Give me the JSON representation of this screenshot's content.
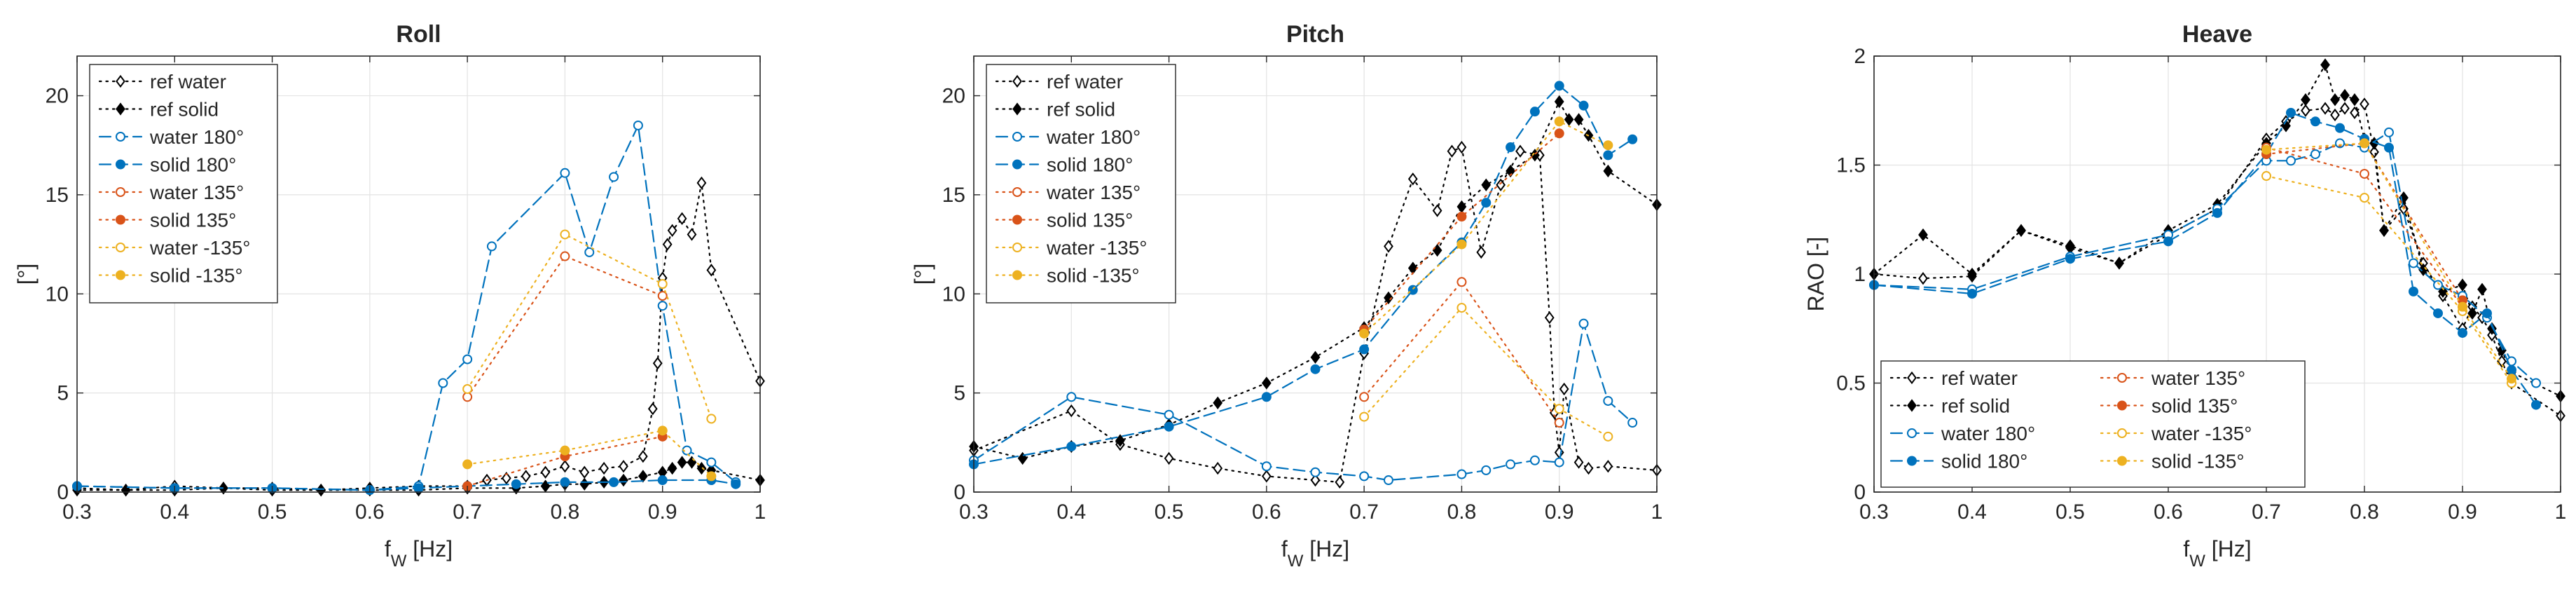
{
  "series_styles": {
    "ref_water": {
      "label": "ref water",
      "color": "#000000",
      "dash": "dot",
      "marker": "diamond",
      "filled": false
    },
    "ref_solid": {
      "label": "ref solid",
      "color": "#000000",
      "dash": "dot",
      "marker": "diamond",
      "filled": true
    },
    "water_180": {
      "label": "water 180°",
      "color": "#0072BD",
      "dash": "dash",
      "marker": "circle",
      "filled": false
    },
    "solid_180": {
      "label": "solid 180°",
      "color": "#0072BD",
      "dash": "dash",
      "marker": "circle",
      "filled": true
    },
    "water_135": {
      "label": "water 135°",
      "color": "#D95319",
      "dash": "dot",
      "marker": "circle",
      "filled": false
    },
    "solid_135": {
      "label": "solid 135°",
      "color": "#D95319",
      "dash": "dot",
      "marker": "circle",
      "filled": true
    },
    "water_m135": {
      "label": "water -135°",
      "color": "#EDB120",
      "dash": "dot",
      "marker": "circle",
      "filled": false
    },
    "solid_m135": {
      "label": "solid -135°",
      "color": "#EDB120",
      "dash": "dot",
      "marker": "circle",
      "filled": true
    }
  },
  "chart_data": [
    {
      "type": "line",
      "title": "Roll",
      "xlabel": "f_W [Hz]",
      "ylabel": "[°]",
      "xlim": [
        0.3,
        1.0
      ],
      "ylim": [
        0,
        22
      ],
      "xticks": [
        0.3,
        0.4,
        0.5,
        0.6,
        0.7,
        0.8,
        0.9,
        1
      ],
      "xtick_labels": [
        "0.3",
        "0.4",
        "0.5",
        "0.6",
        "0.7",
        "0.8",
        "0.9",
        "1"
      ],
      "yticks": [
        0,
        5,
        10,
        15,
        20
      ],
      "ytick_labels": [
        "0",
        "5",
        "10",
        "15",
        "20"
      ],
      "grid": true,
      "legend": "top-left",
      "legend_columns": 1,
      "series": [
        {
          "key": "ref_water",
          "x": [
            0.3,
            0.35,
            0.4,
            0.45,
            0.5,
            0.55,
            0.6,
            0.65,
            0.7,
            0.72,
            0.74,
            0.76,
            0.78,
            0.8,
            0.82,
            0.84,
            0.86,
            0.88,
            0.89,
            0.895,
            0.9,
            0.905,
            0.91,
            0.92,
            0.93,
            0.94,
            0.95,
            1.0
          ],
          "y": [
            0.2,
            0.1,
            0.3,
            0.2,
            0.2,
            0.1,
            0.2,
            0.3,
            0.3,
            0.6,
            0.7,
            0.8,
            1.0,
            1.3,
            1.0,
            1.2,
            1.3,
            1.8,
            4.2,
            6.5,
            10.8,
            12.5,
            13.2,
            13.8,
            13.0,
            15.6,
            11.2,
            5.6
          ]
        },
        {
          "key": "ref_solid",
          "x": [
            0.3,
            0.35,
            0.4,
            0.45,
            0.5,
            0.55,
            0.6,
            0.65,
            0.7,
            0.75,
            0.78,
            0.8,
            0.82,
            0.84,
            0.86,
            0.88,
            0.9,
            0.91,
            0.92,
            0.93,
            0.94,
            0.95,
            1.0
          ],
          "y": [
            0.1,
            0.1,
            0.1,
            0.2,
            0.1,
            0.1,
            0.1,
            0.1,
            0.2,
            0.2,
            0.3,
            0.4,
            0.4,
            0.5,
            0.6,
            0.8,
            1.0,
            1.2,
            1.5,
            1.5,
            1.2,
            1.1,
            0.6
          ]
        },
        {
          "key": "water_180",
          "x": [
            0.3,
            0.4,
            0.5,
            0.6,
            0.65,
            0.675,
            0.7,
            0.725,
            0.8,
            0.825,
            0.85,
            0.875,
            0.9,
            0.925,
            0.95,
            0.975
          ],
          "y": [
            0.3,
            0.2,
            0.2,
            0.1,
            0.3,
            5.5,
            6.7,
            12.4,
            16.1,
            12.1,
            15.9,
            18.5,
            9.4,
            2.1,
            1.5,
            0.5
          ]
        },
        {
          "key": "solid_180",
          "x": [
            0.3,
            0.4,
            0.5,
            0.6,
            0.65,
            0.7,
            0.75,
            0.8,
            0.85,
            0.9,
            0.95,
            0.975
          ],
          "y": [
            0.3,
            0.2,
            0.2,
            0.1,
            0.2,
            0.3,
            0.4,
            0.5,
            0.5,
            0.6,
            0.6,
            0.4
          ]
        },
        {
          "key": "water_135",
          "x": [
            0.7,
            0.8,
            0.9
          ],
          "y": [
            4.8,
            11.9,
            9.9
          ]
        },
        {
          "key": "solid_135",
          "x": [
            0.7,
            0.8,
            0.9
          ],
          "y": [
            0.3,
            1.8,
            2.8
          ]
        },
        {
          "key": "water_m135",
          "x": [
            0.7,
            0.8,
            0.9,
            0.95
          ],
          "y": [
            5.2,
            13.0,
            10.5,
            3.7
          ]
        },
        {
          "key": "solid_m135",
          "x": [
            0.7,
            0.8,
            0.9,
            0.95
          ],
          "y": [
            1.4,
            2.1,
            3.1,
            0.8
          ]
        }
      ]
    },
    {
      "type": "line",
      "title": "Pitch",
      "xlabel": "f_W [Hz]",
      "ylabel": "[°]",
      "xlim": [
        0.3,
        1.0
      ],
      "ylim": [
        0,
        22
      ],
      "xticks": [
        0.3,
        0.4,
        0.5,
        0.6,
        0.7,
        0.8,
        0.9,
        1
      ],
      "xtick_labels": [
        "0.3",
        "0.4",
        "0.5",
        "0.6",
        "0.7",
        "0.8",
        "0.9",
        "1"
      ],
      "yticks": [
        0,
        5,
        10,
        15,
        20
      ],
      "ytick_labels": [
        "0",
        "5",
        "10",
        "15",
        "20"
      ],
      "grid": true,
      "legend": "top-left",
      "legend_columns": 1,
      "series": [
        {
          "key": "ref_water",
          "x": [
            0.3,
            0.4,
            0.45,
            0.5,
            0.55,
            0.6,
            0.65,
            0.675,
            0.7,
            0.725,
            0.75,
            0.775,
            0.79,
            0.8,
            0.82,
            0.84,
            0.86,
            0.88,
            0.89,
            0.895,
            0.9,
            0.905,
            0.92,
            0.93,
            0.95,
            1.0
          ],
          "y": [
            2.1,
            4.1,
            2.4,
            1.7,
            1.2,
            0.8,
            0.6,
            0.5,
            7.0,
            12.4,
            15.8,
            14.2,
            17.2,
            17.4,
            12.1,
            15.5,
            17.2,
            17.0,
            8.8,
            4.0,
            2.0,
            5.2,
            1.5,
            1.2,
            1.3,
            1.1
          ]
        },
        {
          "key": "ref_solid",
          "x": [
            0.3,
            0.35,
            0.4,
            0.45,
            0.5,
            0.55,
            0.6,
            0.65,
            0.7,
            0.725,
            0.75,
            0.775,
            0.8,
            0.825,
            0.85,
            0.875,
            0.9,
            0.91,
            0.92,
            0.93,
            0.95,
            1.0
          ],
          "y": [
            2.3,
            1.7,
            2.3,
            2.6,
            3.4,
            4.5,
            5.5,
            6.8,
            8.3,
            9.8,
            11.3,
            12.2,
            14.4,
            15.5,
            16.2,
            17.0,
            19.7,
            18.8,
            18.8,
            18.0,
            16.2,
            14.5
          ]
        },
        {
          "key": "water_180",
          "x": [
            0.3,
            0.4,
            0.5,
            0.6,
            0.65,
            0.7,
            0.725,
            0.8,
            0.825,
            0.85,
            0.875,
            0.9,
            0.925,
            0.95,
            0.975
          ],
          "y": [
            1.6,
            4.8,
            3.9,
            1.3,
            1.0,
            0.8,
            0.6,
            0.9,
            1.1,
            1.4,
            1.6,
            1.5,
            8.5,
            4.6,
            3.5
          ]
        },
        {
          "key": "solid_180",
          "x": [
            0.3,
            0.4,
            0.5,
            0.6,
            0.65,
            0.7,
            0.75,
            0.8,
            0.825,
            0.85,
            0.875,
            0.9,
            0.925,
            0.95,
            0.975
          ],
          "y": [
            1.4,
            2.3,
            3.3,
            4.8,
            6.2,
            7.2,
            10.2,
            12.6,
            14.6,
            17.4,
            19.2,
            20.5,
            19.5,
            17.0,
            17.8
          ]
        },
        {
          "key": "water_135",
          "x": [
            0.7,
            0.8,
            0.9
          ],
          "y": [
            4.8,
            10.6,
            3.5
          ]
        },
        {
          "key": "solid_135",
          "x": [
            0.7,
            0.8,
            0.9
          ],
          "y": [
            8.2,
            13.9,
            18.1
          ]
        },
        {
          "key": "water_m135",
          "x": [
            0.7,
            0.8,
            0.9,
            0.95
          ],
          "y": [
            3.8,
            9.3,
            4.2,
            2.8
          ]
        },
        {
          "key": "solid_m135",
          "x": [
            0.7,
            0.8,
            0.9,
            0.95
          ],
          "y": [
            8.0,
            12.5,
            18.7,
            17.5
          ]
        }
      ]
    },
    {
      "type": "line",
      "title": "Heave",
      "xlabel": "f_W [Hz]",
      "ylabel": "RAO [-]",
      "xlim": [
        0.3,
        1.0
      ],
      "ylim": [
        0,
        2
      ],
      "xticks": [
        0.3,
        0.4,
        0.5,
        0.6,
        0.7,
        0.8,
        0.9,
        1
      ],
      "xtick_labels": [
        "0.3",
        "0.4",
        "0.5",
        "0.6",
        "0.7",
        "0.8",
        "0.9",
        "1"
      ],
      "yticks": [
        0,
        0.5,
        1,
        1.5,
        2
      ],
      "ytick_labels": [
        "0",
        "0.5",
        "1",
        "1.5",
        "2"
      ],
      "grid": true,
      "legend": "bottom-left",
      "legend_columns": 2,
      "series": [
        {
          "key": "ref_water",
          "x": [
            0.3,
            0.35,
            0.4,
            0.45,
            0.5,
            0.55,
            0.6,
            0.65,
            0.7,
            0.72,
            0.74,
            0.76,
            0.77,
            0.78,
            0.79,
            0.8,
            0.81,
            0.82,
            0.84,
            0.86,
            0.88,
            0.9,
            0.91,
            0.92,
            0.93,
            0.94,
            0.95,
            1.0
          ],
          "y": [
            1.0,
            0.98,
            0.99,
            1.2,
            1.12,
            1.05,
            1.18,
            1.3,
            1.62,
            1.7,
            1.75,
            1.76,
            1.73,
            1.76,
            1.74,
            1.78,
            1.56,
            1.2,
            1.3,
            1.05,
            0.9,
            0.75,
            0.85,
            0.8,
            0.72,
            0.6,
            0.5,
            0.35
          ]
        },
        {
          "key": "ref_solid",
          "x": [
            0.3,
            0.35,
            0.4,
            0.45,
            0.5,
            0.55,
            0.6,
            0.65,
            0.7,
            0.72,
            0.74,
            0.76,
            0.77,
            0.78,
            0.79,
            0.8,
            0.81,
            0.82,
            0.84,
            0.86,
            0.88,
            0.9,
            0.91,
            0.92,
            0.93,
            0.94,
            0.95,
            1.0
          ],
          "y": [
            1.0,
            1.18,
            1.0,
            1.2,
            1.13,
            1.05,
            1.2,
            1.32,
            1.6,
            1.68,
            1.8,
            1.96,
            1.8,
            1.82,
            1.8,
            1.62,
            1.6,
            1.2,
            1.35,
            1.02,
            0.92,
            0.95,
            0.82,
            0.93,
            0.75,
            0.65,
            0.55,
            0.44
          ]
        },
        {
          "key": "water_180",
          "x": [
            0.3,
            0.4,
            0.5,
            0.6,
            0.65,
            0.7,
            0.725,
            0.75,
            0.775,
            0.8,
            0.825,
            0.85,
            0.875,
            0.9,
            0.925,
            0.95,
            0.975
          ],
          "y": [
            0.95,
            0.93,
            1.08,
            1.18,
            1.3,
            1.52,
            1.52,
            1.55,
            1.6,
            1.58,
            1.65,
            1.05,
            0.95,
            0.9,
            0.8,
            0.6,
            0.5
          ]
        },
        {
          "key": "solid_180",
          "x": [
            0.3,
            0.4,
            0.5,
            0.6,
            0.65,
            0.7,
            0.725,
            0.75,
            0.775,
            0.8,
            0.825,
            0.85,
            0.875,
            0.9,
            0.925,
            0.95,
            0.975
          ],
          "y": [
            0.95,
            0.91,
            1.07,
            1.15,
            1.28,
            1.55,
            1.74,
            1.7,
            1.67,
            1.62,
            1.58,
            0.92,
            0.82,
            0.73,
            0.82,
            0.56,
            0.4
          ]
        },
        {
          "key": "water_135",
          "x": [
            0.7,
            0.8,
            0.9
          ],
          "y": [
            1.58,
            1.46,
            0.85
          ]
        },
        {
          "key": "solid_135",
          "x": [
            0.7,
            0.8,
            0.9
          ],
          "y": [
            1.55,
            1.6,
            0.88
          ]
        },
        {
          "key": "water_m135",
          "x": [
            0.7,
            0.8,
            0.9,
            0.95
          ],
          "y": [
            1.45,
            1.35,
            0.83,
            0.5
          ]
        },
        {
          "key": "solid_m135",
          "x": [
            0.7,
            0.8,
            0.9,
            0.95
          ],
          "y": [
            1.57,
            1.6,
            0.85,
            0.52
          ]
        }
      ]
    }
  ]
}
